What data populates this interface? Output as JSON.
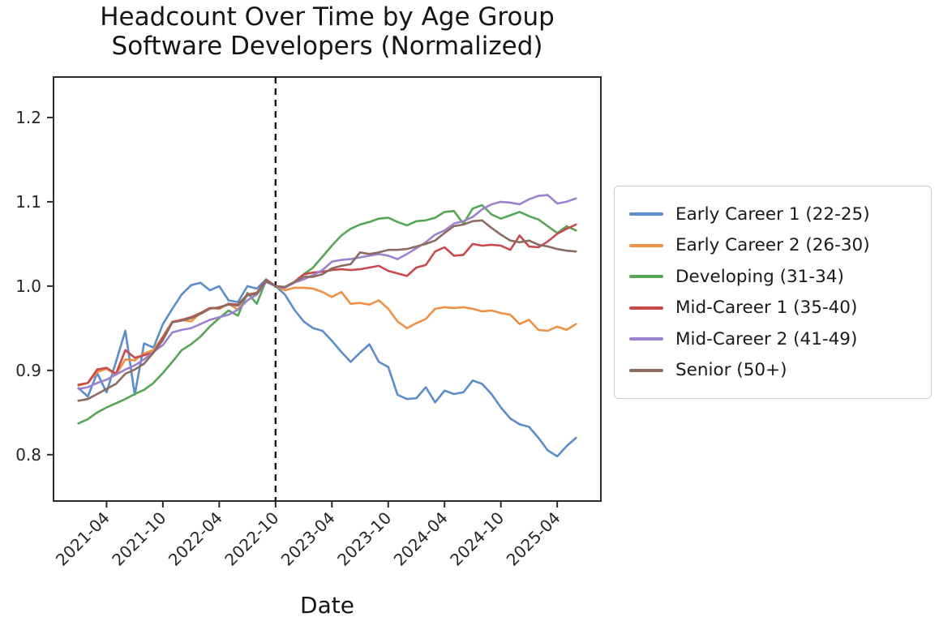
{
  "chart_data": {
    "type": "line",
    "title": "Headcount Over Time by Age Group\nSoftware Developers (Normalized)",
    "title_lines": [
      "Headcount Over Time by Age Group",
      "Software Developers (Normalized)"
    ],
    "xlabel": "Date",
    "ylabel": "",
    "grid": false,
    "legend_position": "center right outside",
    "ylim": [
      0.745,
      1.248
    ],
    "xlim_months": [
      -2.65,
      55.65
    ],
    "yticks": [
      0.8,
      0.9,
      1.0,
      1.1,
      1.2
    ],
    "xticks": [
      "2021-04",
      "2021-10",
      "2022-04",
      "2022-10",
      "2023-04",
      "2023-10",
      "2024-04",
      "2024-10",
      "2025-04"
    ],
    "vline": {
      "x": "2022-10",
      "style": "dashed",
      "color": "#1a1a1a",
      "meaning": "normalization point (all series = 1.0)"
    },
    "x": [
      "2021-01",
      "2021-02",
      "2021-03",
      "2021-04",
      "2021-05",
      "2021-06",
      "2021-07",
      "2021-08",
      "2021-09",
      "2021-10",
      "2021-11",
      "2021-12",
      "2022-01",
      "2022-02",
      "2022-03",
      "2022-04",
      "2022-05",
      "2022-06",
      "2022-07",
      "2022-08",
      "2022-09",
      "2022-10",
      "2022-11",
      "2022-12",
      "2023-01",
      "2023-02",
      "2023-03",
      "2023-04",
      "2023-05",
      "2023-06",
      "2023-07",
      "2023-08",
      "2023-09",
      "2023-10",
      "2023-11",
      "2023-12",
      "2024-01",
      "2024-02",
      "2024-03",
      "2024-04",
      "2024-05",
      "2024-06",
      "2024-07",
      "2024-08",
      "2024-09",
      "2024-10",
      "2024-11",
      "2024-12",
      "2025-01",
      "2025-02",
      "2025-03",
      "2025-04",
      "2025-05",
      "2025-06"
    ],
    "series": [
      {
        "name": "Early Career 1 (22-25)",
        "color": "#5b8dca",
        "values": [
          0.879,
          0.869,
          0.897,
          0.874,
          0.91,
          0.947,
          0.871,
          0.932,
          0.927,
          0.955,
          0.973,
          0.99,
          1.001,
          1.004,
          0.995,
          1.0,
          0.983,
          0.981,
          1.0,
          0.997,
          1.008,
          1.0,
          0.99,
          0.972,
          0.958,
          0.95,
          0.947,
          0.935,
          0.922,
          0.91,
          0.921,
          0.931,
          0.91,
          0.904,
          0.871,
          0.866,
          0.867,
          0.88,
          0.862,
          0.876,
          0.872,
          0.874,
          0.888,
          0.884,
          0.872,
          0.856,
          0.843,
          0.836,
          0.833,
          0.82,
          0.805,
          0.798,
          0.81,
          0.82
        ]
      },
      {
        "name": "Early Career 2 (26-30)",
        "color": "#ee9044",
        "values": [
          0.882,
          0.885,
          0.898,
          0.902,
          0.895,
          0.913,
          0.912,
          0.92,
          0.924,
          0.94,
          0.958,
          0.96,
          0.958,
          0.968,
          0.974,
          0.973,
          0.979,
          0.972,
          0.99,
          0.99,
          1.007,
          1.0,
          0.995,
          0.998,
          0.998,
          0.997,
          0.993,
          0.987,
          0.993,
          0.979,
          0.98,
          0.978,
          0.983,
          0.973,
          0.958,
          0.95,
          0.956,
          0.961,
          0.973,
          0.975,
          0.974,
          0.975,
          0.973,
          0.97,
          0.971,
          0.968,
          0.966,
          0.955,
          0.96,
          0.948,
          0.947,
          0.952,
          0.948,
          0.955
        ]
      },
      {
        "name": "Developing (31-34)",
        "color": "#56a656",
        "values": [
          0.837,
          0.842,
          0.85,
          0.856,
          0.861,
          0.866,
          0.872,
          0.877,
          0.885,
          0.897,
          0.91,
          0.924,
          0.931,
          0.94,
          0.952,
          0.962,
          0.971,
          0.965,
          0.992,
          0.979,
          1.007,
          1.0,
          0.998,
          1.005,
          1.014,
          1.022,
          1.035,
          1.048,
          1.06,
          1.068,
          1.073,
          1.076,
          1.08,
          1.081,
          1.076,
          1.072,
          1.077,
          1.078,
          1.081,
          1.088,
          1.089,
          1.074,
          1.092,
          1.096,
          1.085,
          1.08,
          1.084,
          1.088,
          1.083,
          1.079,
          1.071,
          1.063,
          1.071,
          1.066
        ]
      },
      {
        "name": "Mid-Career 1 (35-40)",
        "color": "#c84a4d",
        "values": [
          0.883,
          0.885,
          0.901,
          0.903,
          0.896,
          0.924,
          0.915,
          0.918,
          0.921,
          0.939,
          0.957,
          0.96,
          0.963,
          0.968,
          0.974,
          0.974,
          0.979,
          0.978,
          0.99,
          0.992,
          1.007,
          1.0,
          0.998,
          1.005,
          1.014,
          1.016,
          1.017,
          1.019,
          1.02,
          1.019,
          1.02,
          1.022,
          1.024,
          1.018,
          1.015,
          1.012,
          1.022,
          1.025,
          1.041,
          1.046,
          1.036,
          1.037,
          1.05,
          1.048,
          1.049,
          1.048,
          1.043,
          1.06,
          1.047,
          1.046,
          1.053,
          1.062,
          1.068,
          1.073
        ]
      },
      {
        "name": "Mid-Career 2 (41-49)",
        "color": "#9c82ce",
        "values": [
          0.878,
          0.88,
          0.885,
          0.889,
          0.895,
          0.901,
          0.906,
          0.913,
          0.922,
          0.93,
          0.945,
          0.948,
          0.95,
          0.955,
          0.96,
          0.963,
          0.966,
          0.972,
          0.983,
          0.99,
          1.005,
          1.0,
          0.998,
          1.004,
          1.008,
          1.013,
          1.019,
          1.029,
          1.031,
          1.032,
          1.034,
          1.036,
          1.038,
          1.036,
          1.032,
          1.038,
          1.045,
          1.052,
          1.061,
          1.066,
          1.074,
          1.077,
          1.082,
          1.091,
          1.097,
          1.1,
          1.099,
          1.097,
          1.103,
          1.107,
          1.108,
          1.098,
          1.1,
          1.104
        ]
      },
      {
        "name": "Senior (50+)",
        "color": "#8d6b60",
        "values": [
          0.864,
          0.866,
          0.872,
          0.878,
          0.884,
          0.896,
          0.901,
          0.908,
          0.921,
          0.936,
          0.957,
          0.959,
          0.962,
          0.967,
          0.973,
          0.975,
          0.978,
          0.977,
          0.989,
          0.991,
          1.006,
          1.0,
          0.999,
          1.005,
          1.011,
          1.011,
          1.014,
          1.021,
          1.024,
          1.026,
          1.04,
          1.038,
          1.04,
          1.043,
          1.043,
          1.044,
          1.047,
          1.05,
          1.054,
          1.063,
          1.071,
          1.073,
          1.077,
          1.078,
          1.069,
          1.061,
          1.054,
          1.052,
          1.054,
          1.049,
          1.047,
          1.044,
          1.042,
          1.041
        ]
      }
    ]
  }
}
